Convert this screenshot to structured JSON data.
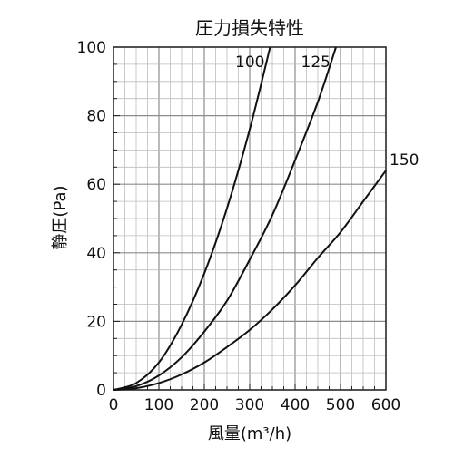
{
  "chart_data": {
    "type": "line",
    "title": "圧力損失特性",
    "xlabel": "風量(m³/h)",
    "ylabel": "静圧(Pa)",
    "xlim": [
      0,
      600
    ],
    "ylim": [
      0,
      100
    ],
    "x_ticks": [
      "0",
      "100",
      "200",
      "300",
      "400",
      "500",
      "600"
    ],
    "y_ticks": [
      "0",
      "20",
      "40",
      "60",
      "80",
      "100"
    ],
    "grid": true,
    "series": [
      {
        "name": "100",
        "x": [
          0,
          50,
          100,
          150,
          200,
          250,
          300,
          345
        ],
        "y": [
          0,
          2,
          8,
          19,
          34,
          53,
          76,
          100
        ]
      },
      {
        "name": "125",
        "x": [
          0,
          50,
          100,
          150,
          200,
          250,
          300,
          350,
          400,
          450,
          490
        ],
        "y": [
          0,
          1.1,
          4.2,
          9.5,
          17,
          26,
          38,
          51,
          67,
          84,
          100
        ]
      },
      {
        "name": "150",
        "x": [
          0,
          50,
          100,
          150,
          200,
          250,
          300,
          350,
          400,
          450,
          500,
          550,
          600
        ],
        "y": [
          0,
          0.5,
          2,
          4.5,
          8,
          12.5,
          17.5,
          23.5,
          30.5,
          38.5,
          46,
          55,
          64
        ]
      }
    ]
  }
}
